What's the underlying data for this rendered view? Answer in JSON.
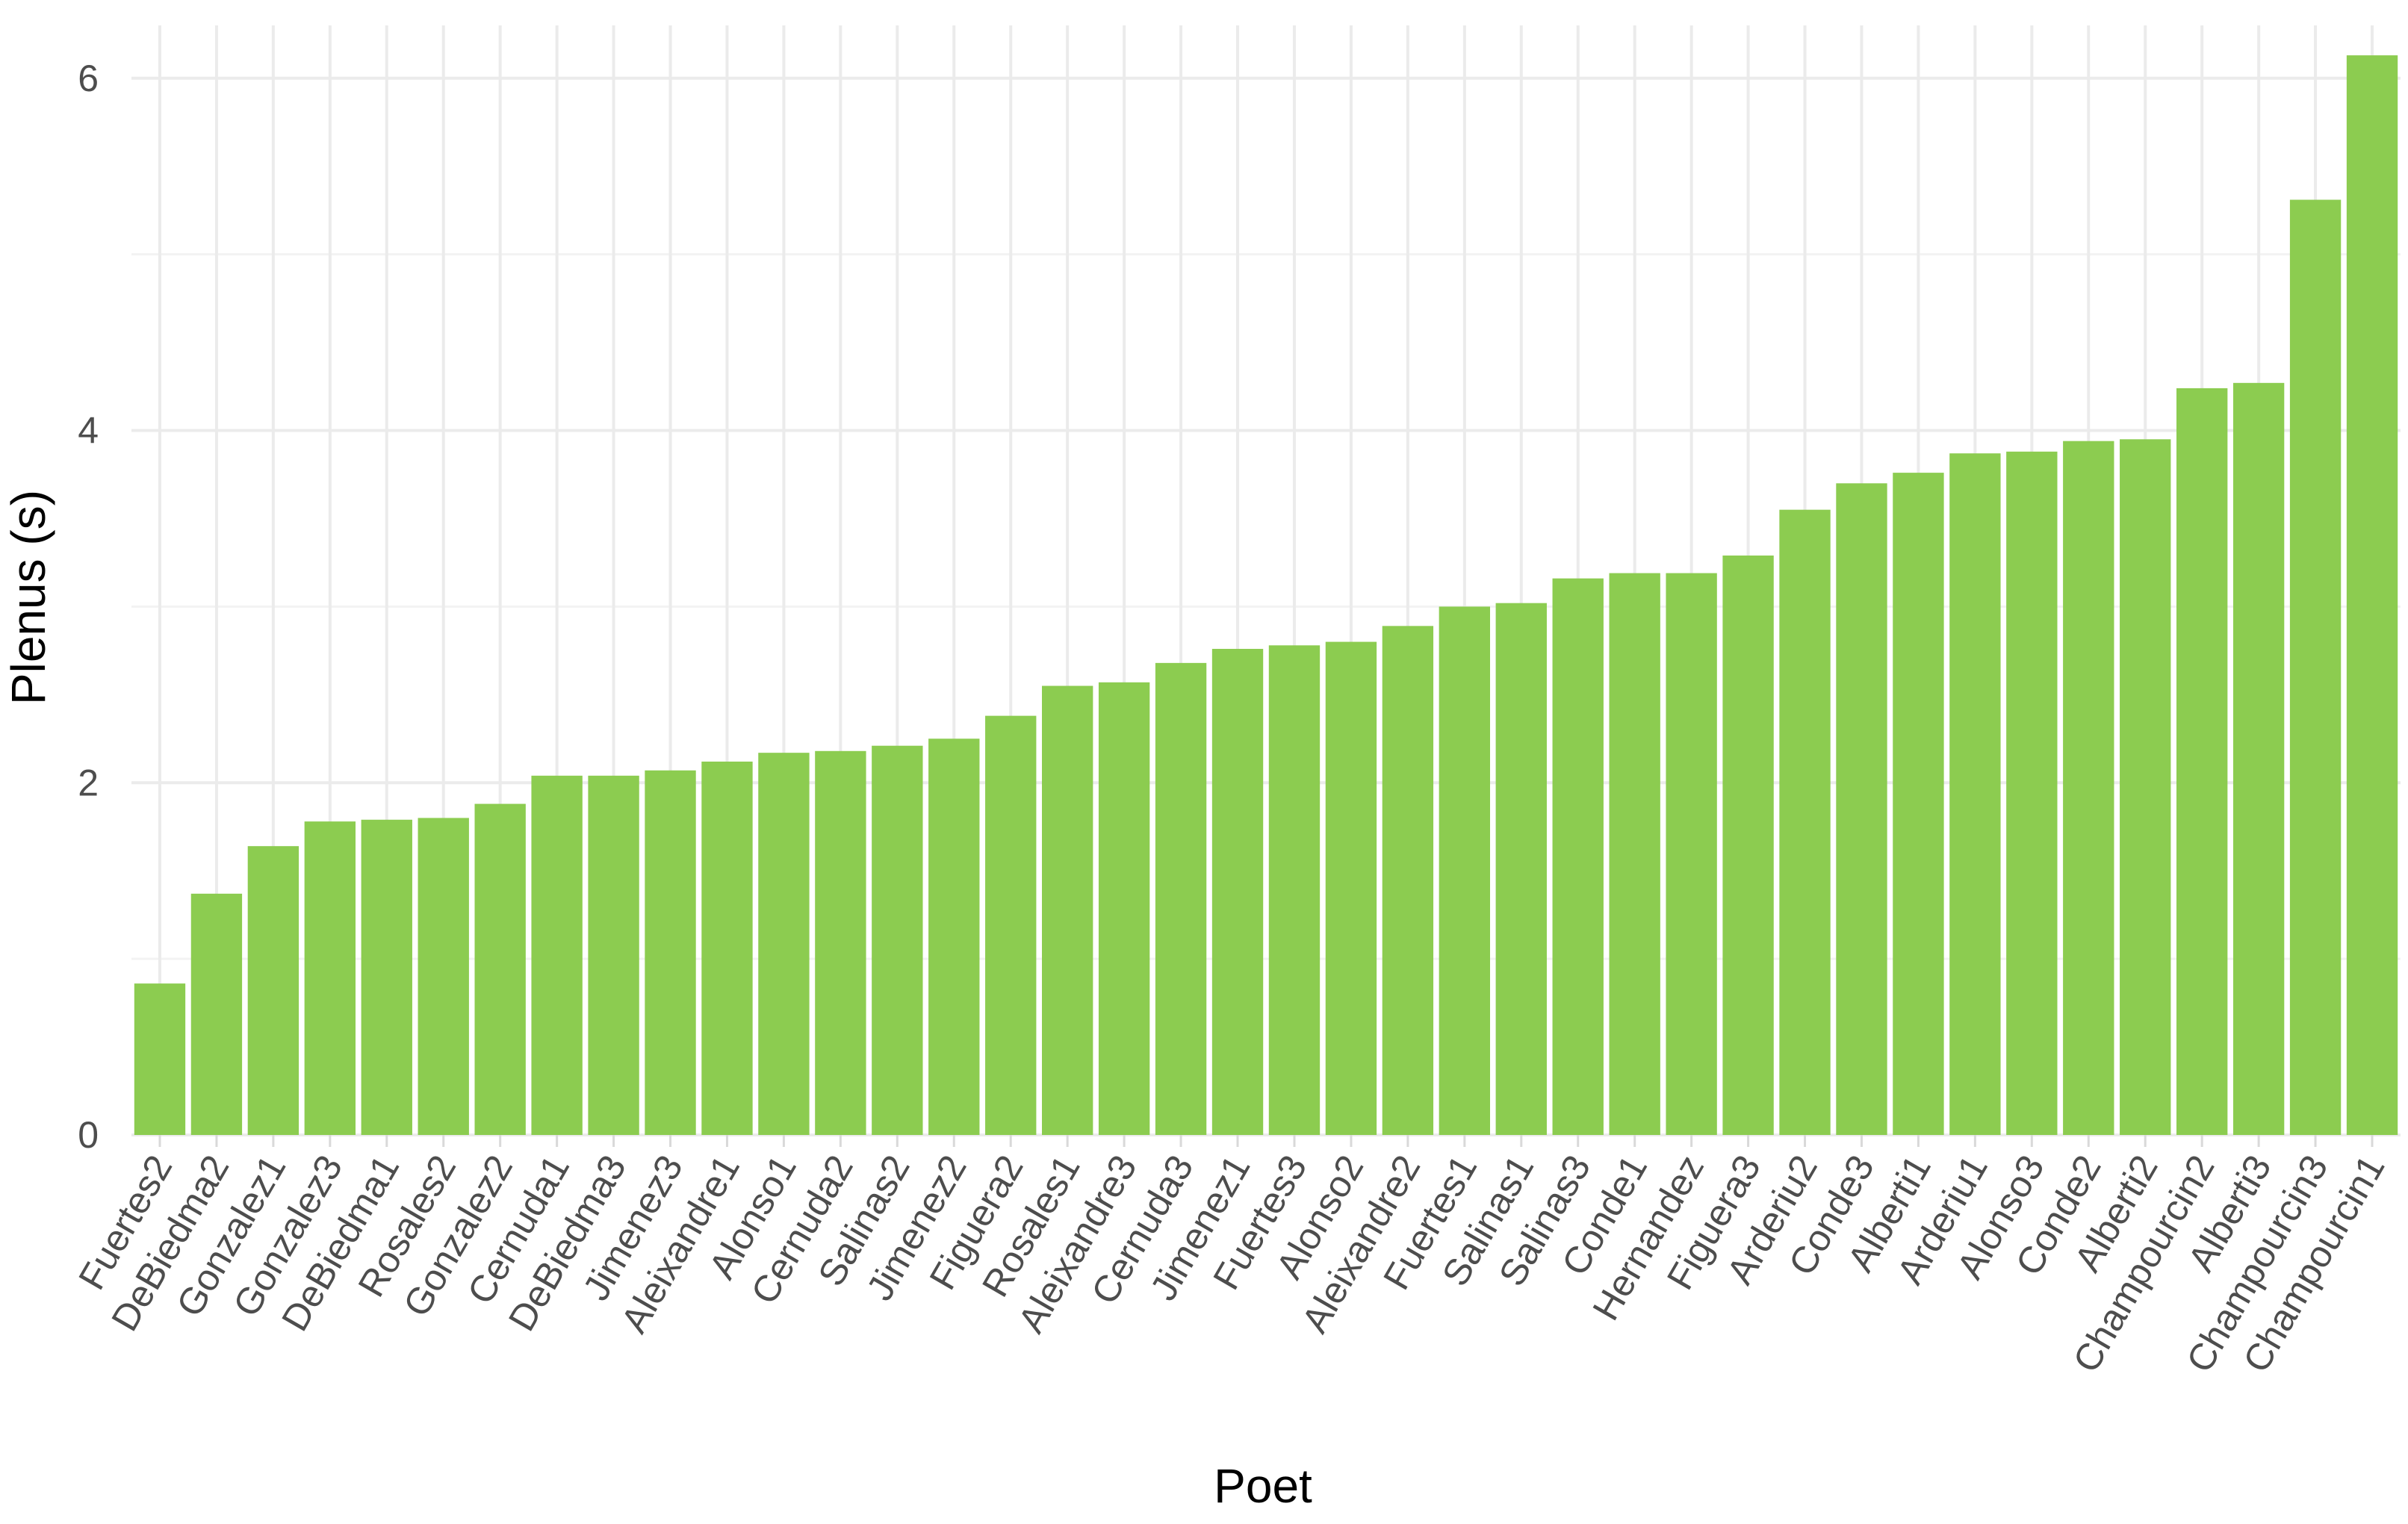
{
  "chart_data": {
    "type": "bar",
    "xlabel": "Poet",
    "ylabel": "Plenus (s)",
    "ylim": [
      0,
      6.3
    ],
    "yticks": [
      0,
      2,
      4,
      6
    ],
    "grid": true,
    "legend": "none",
    "bar_color": "#8ccc50",
    "categories": [
      "Fuertes2",
      "DeBiedma2",
      "Gonzalez1",
      "Gonzalez3",
      "DeBiedma1",
      "Rosales2",
      "Gonzalez2",
      "Cernuda1",
      "DeBiedma3",
      "Jimenez3",
      "Aleixandre1",
      "Alonso1",
      "Cernuda2",
      "Salinas2",
      "Jimenez2",
      "Figuera2",
      "Rosales1",
      "Aleixandre3",
      "Cernuda3",
      "Jimenez1",
      "Fuertes3",
      "Alonso2",
      "Aleixandre2",
      "Fuertes1",
      "Salinas1",
      "Salinas3",
      "Conde1",
      "Hernandez",
      "Figuera3",
      "Arderiu2",
      "Conde3",
      "Alberti1",
      "Arderiu1",
      "Alonso3",
      "Conde2",
      "Alberti2",
      "Champourcin2",
      "Alberti3",
      "Champourcin3",
      "Champourcin1"
    ],
    "values": [
      0.86,
      1.37,
      1.64,
      1.78,
      1.79,
      1.8,
      1.88,
      2.04,
      2.04,
      2.07,
      2.12,
      2.17,
      2.18,
      2.21,
      2.25,
      2.38,
      2.55,
      2.57,
      2.68,
      2.76,
      2.78,
      2.8,
      2.89,
      3.0,
      3.02,
      3.16,
      3.19,
      3.19,
      3.29,
      3.55,
      3.7,
      3.76,
      3.87,
      3.88,
      3.94,
      3.95,
      4.24,
      4.27,
      5.31,
      6.13
    ]
  }
}
